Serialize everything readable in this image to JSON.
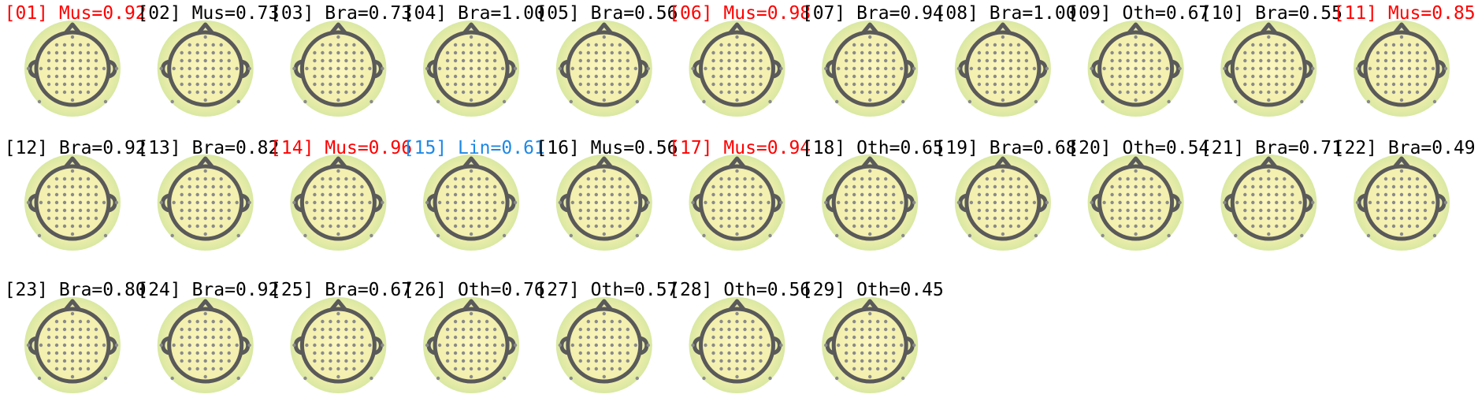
{
  "components": [
    {
      "label": "[01] Mus=0.92",
      "color": "#ff0000"
    },
    {
      "label": "[02] Mus=0.73",
      "color": "#000000"
    },
    {
      "label": "[03] Bra=0.73",
      "color": "#000000"
    },
    {
      "label": "[04] Bra=1.00",
      "color": "#000000"
    },
    {
      "label": "[05] Bra=0.56",
      "color": "#000000"
    },
    {
      "label": "[06] Mus=0.98",
      "color": "#ff0000"
    },
    {
      "label": "[07] Bra=0.94",
      "color": "#000000"
    },
    {
      "label": "[08] Bra=1.00",
      "color": "#000000"
    },
    {
      "label": "[09] Oth=0.67",
      "color": "#000000"
    },
    {
      "label": "[10] Bra=0.55",
      "color": "#000000"
    },
    {
      "label": "[11] Mus=0.85",
      "color": "#ff0000"
    },
    {
      "label": "[12] Bra=0.92",
      "color": "#000000"
    },
    {
      "label": "[13] Bra=0.82",
      "color": "#000000"
    },
    {
      "label": "[14] Mus=0.96",
      "color": "#ff0000"
    },
    {
      "label": "[15] Lin=0.61",
      "color": "#1e88e5"
    },
    {
      "label": "[16] Mus=0.56",
      "color": "#000000"
    },
    {
      "label": "[17] Mus=0.94",
      "color": "#ff0000"
    },
    {
      "label": "[18] Oth=0.65",
      "color": "#000000"
    },
    {
      "label": "[19] Bra=0.68",
      "color": "#000000"
    },
    {
      "label": "[20] Oth=0.54",
      "color": "#000000"
    },
    {
      "label": "[21] Bra=0.71",
      "color": "#000000"
    },
    {
      "label": "[22] Bra=0.49",
      "color": "#000000"
    },
    {
      "label": "[23] Bra=0.80",
      "color": "#000000"
    },
    {
      "label": "[24] Bra=0.92",
      "color": "#000000"
    },
    {
      "label": "[25] Bra=0.67",
      "color": "#000000"
    },
    {
      "label": "[26] Oth=0.76",
      "color": "#000000"
    },
    {
      "label": "[27] Oth=0.57",
      "color": "#000000"
    },
    {
      "label": "[28] Oth=0.56",
      "color": "#000000"
    },
    {
      "label": "[29] Oth=0.45",
      "color": "#000000"
    }
  ]
}
